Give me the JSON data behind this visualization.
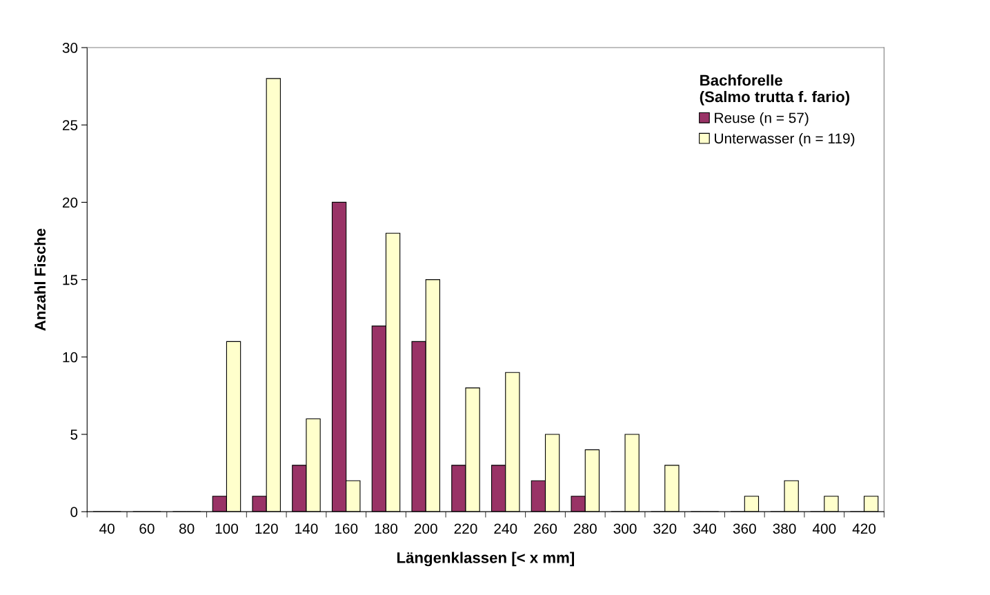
{
  "chart_data": {
    "type": "bar",
    "xlabel": "Längenklassen [< x mm]",
    "ylabel": "Anzahl Fische",
    "legend_title": "Bachforelle\n(Salmo trutta f. fario)",
    "categories": [
      "40",
      "60",
      "80",
      "100",
      "120",
      "140",
      "160",
      "180",
      "200",
      "220",
      "240",
      "260",
      "280",
      "300",
      "320",
      "340",
      "360",
      "380",
      "400",
      "420"
    ],
    "series": [
      {
        "name": "Reuse (n = 57)",
        "color": "#993366",
        "values": [
          0,
          0,
          0,
          1,
          1,
          3,
          20,
          12,
          11,
          3,
          3,
          2,
          1,
          0,
          0,
          0,
          0,
          0,
          0,
          0
        ]
      },
      {
        "name": "Unterwasser (n = 119)",
        "color": "#ffffcc",
        "values": [
          0,
          0,
          0,
          11,
          28,
          6,
          2,
          18,
          15,
          8,
          9,
          5,
          4,
          5,
          3,
          0,
          1,
          2,
          1,
          1
        ]
      }
    ],
    "ylim": [
      0,
      30
    ],
    "yticks": [
      0,
      5,
      10,
      15,
      20,
      25,
      30
    ],
    "grid": false,
    "legend": "top right"
  }
}
